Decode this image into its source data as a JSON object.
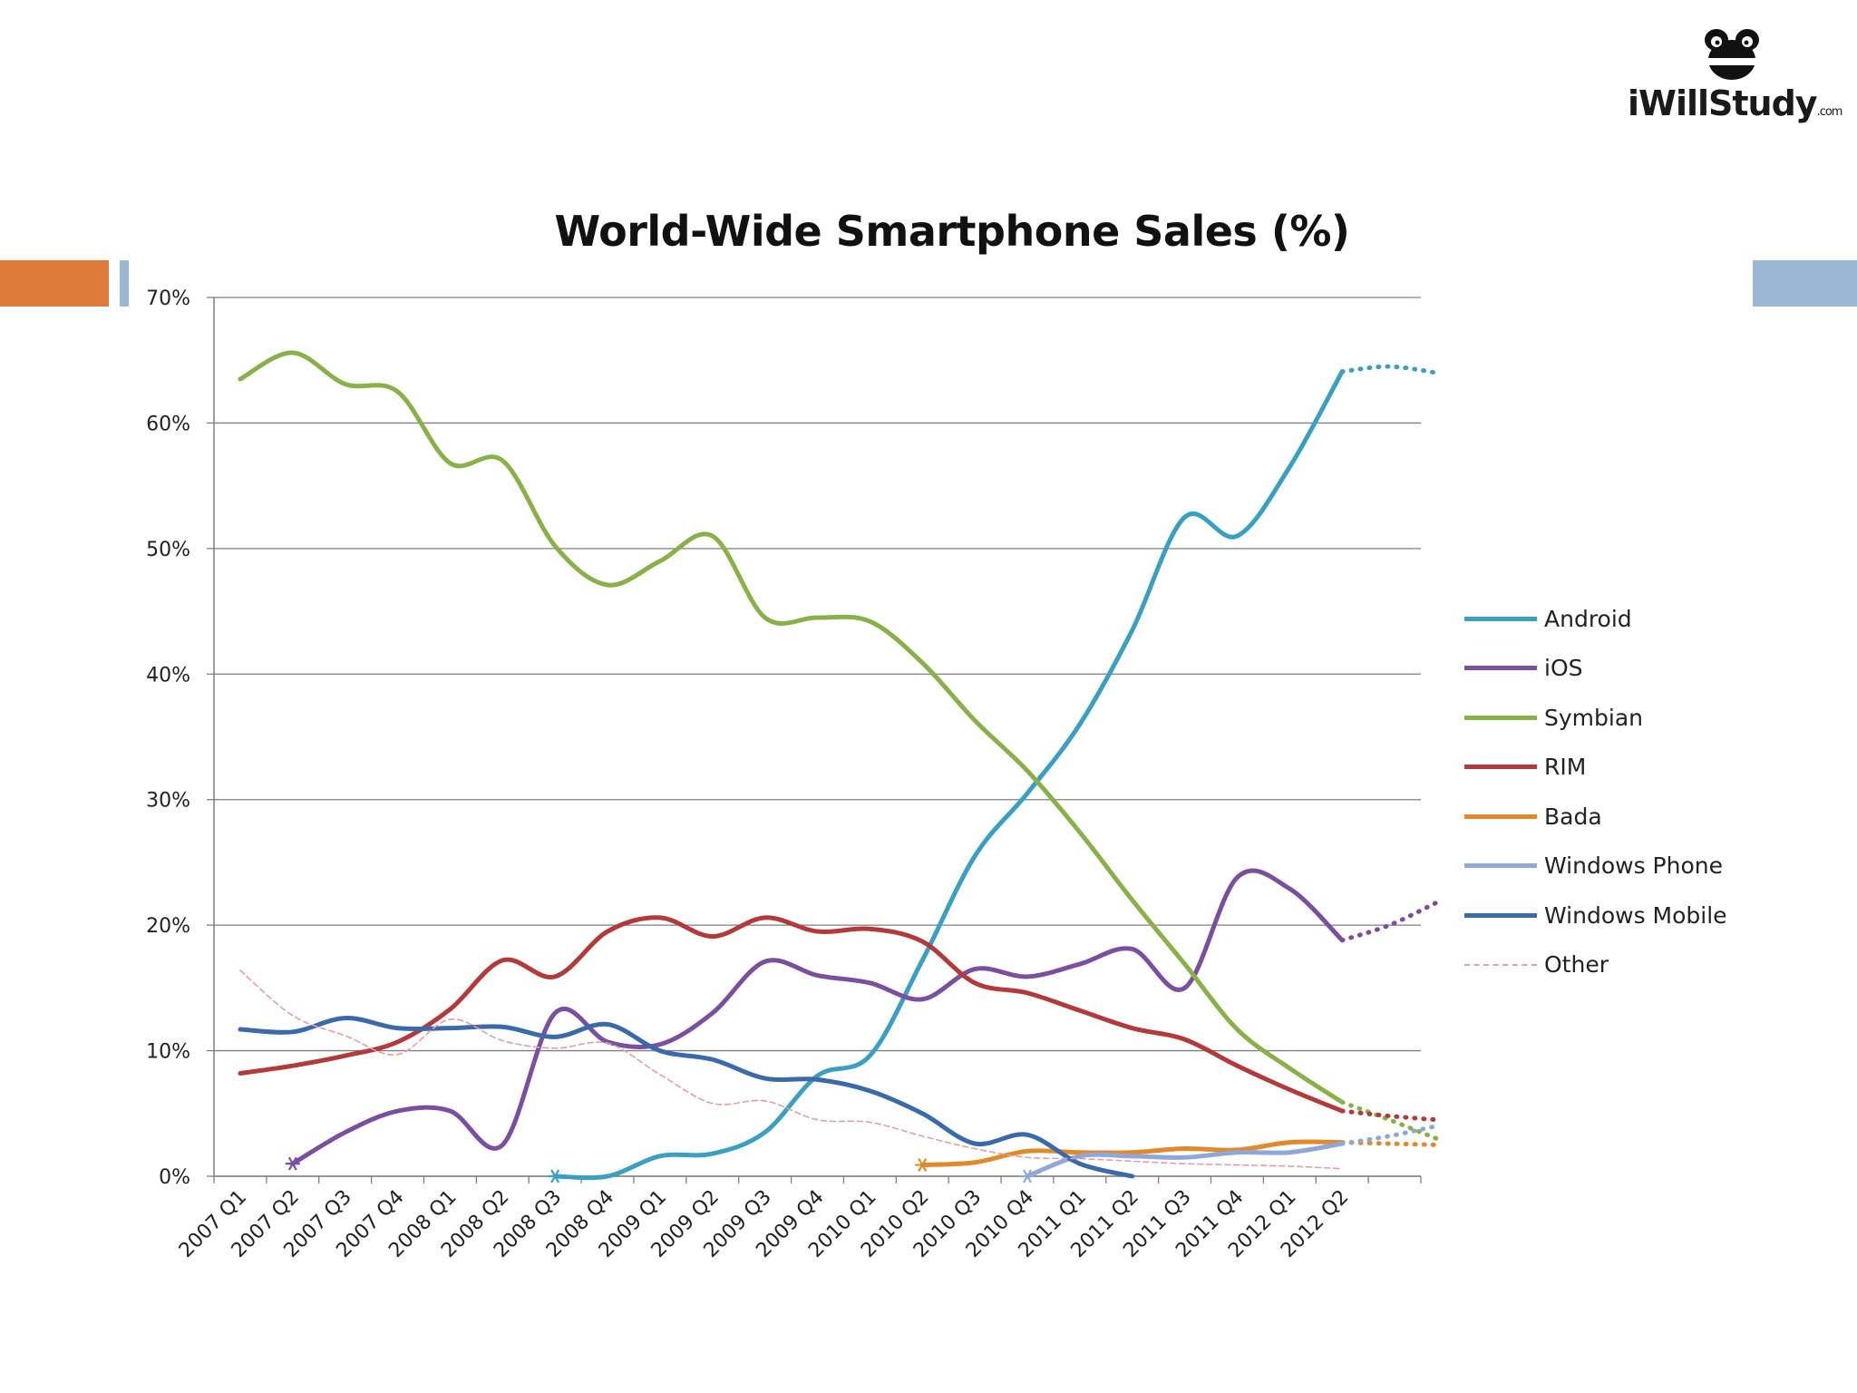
{
  "logo": {
    "name": "iWillStudy",
    "suffix": ".com"
  },
  "colors": {
    "Android": "#3a9fc0",
    "iOS": "#7a4f9e",
    "Symbian": "#8ab04a",
    "RIM": "#b23a3a",
    "Bada": "#e08a2c",
    "Windows Phone": "#8fa8d8",
    "Windows Mobile": "#3a6aaa",
    "Other": "#e0a0a8",
    "grid": "#7f7f7f",
    "deco_orange": "#e07a3c",
    "deco_blue": "#9ab7d3"
  },
  "chart_data": {
    "type": "line",
    "title": "World-Wide Smartphone Sales (%)",
    "xlabel": "",
    "ylabel": "",
    "ylim": [
      0,
      70
    ],
    "yticks": [
      "0%",
      "10%",
      "20%",
      "30%",
      "40%",
      "50%",
      "60%",
      "70%"
    ],
    "categories": [
      "2007 Q1",
      "2007 Q2",
      "2007 Q3",
      "2007 Q4",
      "2008 Q1",
      "2008 Q2",
      "2008 Q3",
      "2008 Q4",
      "2009 Q1",
      "2009 Q2",
      "2009 Q3",
      "2009 Q4",
      "2010 Q1",
      "2010 Q2",
      "2010 Q3",
      "2010 Q4",
      "2011 Q1",
      "2011 Q2",
      "2011 Q3",
      "2011 Q4",
      "2012 Q1",
      "2012 Q2"
    ],
    "series": [
      {
        "name": "Android",
        "style": "solid",
        "values": [
          null,
          null,
          null,
          null,
          null,
          null,
          0,
          0,
          1.6,
          1.8,
          3.5,
          8.0,
          9.6,
          17.2,
          25.5,
          30.5,
          36.0,
          43.5,
          52.5,
          51.0,
          56.5,
          64.1
        ],
        "projection": [
          64.1,
          64.5,
          64.0
        ]
      },
      {
        "name": "iOS",
        "style": "solid",
        "values": [
          null,
          1.0,
          3.5,
          5.2,
          5.2,
          2.5,
          13.0,
          10.7,
          10.5,
          13.0,
          17.1,
          16.0,
          15.4,
          14.1,
          16.5,
          15.9,
          16.9,
          18.1,
          15.0,
          23.8,
          22.9,
          18.8
        ],
        "projection": [
          18.8,
          20.0,
          21.8
        ]
      },
      {
        "name": "Symbian",
        "style": "solid",
        "values": [
          63.5,
          65.6,
          63.1,
          62.5,
          56.8,
          57.0,
          50.2,
          47.1,
          49.0,
          51.0,
          44.5,
          44.5,
          44.2,
          40.9,
          36.3,
          32.3,
          27.4,
          22.0,
          16.9,
          11.7,
          8.6,
          5.9
        ],
        "projection": [
          5.9,
          4.5,
          3.0
        ]
      },
      {
        "name": "RIM",
        "style": "solid",
        "values": [
          8.2,
          8.8,
          9.6,
          10.7,
          13.3,
          17.2,
          15.9,
          19.5,
          20.6,
          19.1,
          20.6,
          19.5,
          19.7,
          18.7,
          15.4,
          14.6,
          13.2,
          11.8,
          10.9,
          8.8,
          6.9,
          5.2
        ],
        "projection": [
          5.2,
          4.8,
          4.5
        ]
      },
      {
        "name": "Bada",
        "style": "solid",
        "values": [
          null,
          null,
          null,
          null,
          null,
          null,
          null,
          null,
          null,
          null,
          null,
          null,
          null,
          0.9,
          1.1,
          2.0,
          1.9,
          1.9,
          2.2,
          2.1,
          2.7,
          2.7
        ],
        "projection": [
          2.7,
          2.6,
          2.5
        ]
      },
      {
        "name": "Windows Phone",
        "style": "solid",
        "values": [
          null,
          null,
          null,
          null,
          null,
          null,
          null,
          null,
          null,
          null,
          null,
          null,
          null,
          null,
          null,
          0,
          1.6,
          1.6,
          1.5,
          1.9,
          1.9,
          2.6
        ],
        "projection": [
          2.6,
          3.2,
          4.0
        ]
      },
      {
        "name": "Windows Mobile",
        "style": "solid",
        "values": [
          11.7,
          11.5,
          12.6,
          11.8,
          11.8,
          11.9,
          11.1,
          12.1,
          10.0,
          9.3,
          7.8,
          7.7,
          6.8,
          5.0,
          2.6,
          3.3,
          1.0,
          0,
          null,
          null,
          null,
          null
        ]
      },
      {
        "name": "Other",
        "style": "dashed",
        "values": [
          16.4,
          12.8,
          11.2,
          9.7,
          12.5,
          10.8,
          10.2,
          10.6,
          8.1,
          5.8,
          6.0,
          4.5,
          4.3,
          3.2,
          2.2,
          1.5,
          1.4,
          1.2,
          1.0,
          0.9,
          0.8,
          0.6
        ]
      }
    ],
    "legend": [
      "Android",
      "iOS",
      "Symbian",
      "RIM",
      "Bada",
      "Windows Phone",
      "Windows Mobile",
      "Other"
    ],
    "legend_position": "right",
    "grid": true
  }
}
